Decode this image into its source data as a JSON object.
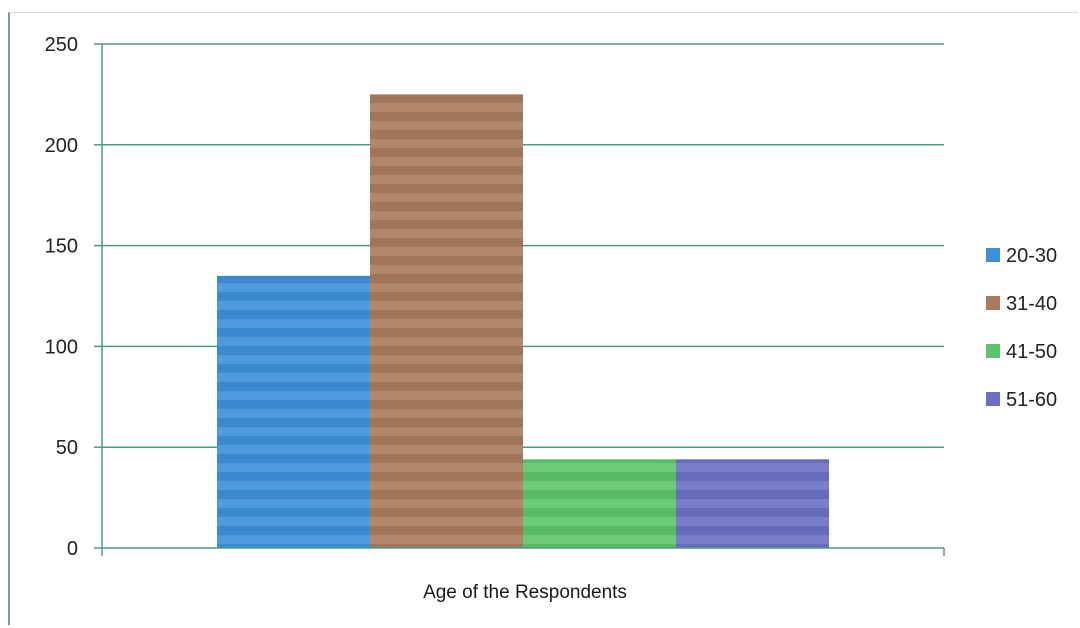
{
  "chart_data": {
    "type": "bar",
    "title": "",
    "xlabel": "Age of the Respondents",
    "ylabel": "",
    "ylim": [
      0,
      250
    ],
    "yticks": [
      0,
      50,
      100,
      150,
      200,
      250
    ],
    "grid": true,
    "legend_position": "right",
    "series": [
      {
        "name": "20-30",
        "value": 135,
        "color": "#3d8fd9"
      },
      {
        "name": "31-40",
        "value": 225,
        "color": "#a87a5e"
      },
      {
        "name": "41-50",
        "value": 44,
        "color": "#5cc46a"
      },
      {
        "name": "51-60",
        "value": 44,
        "color": "#6b6fc4"
      }
    ]
  }
}
